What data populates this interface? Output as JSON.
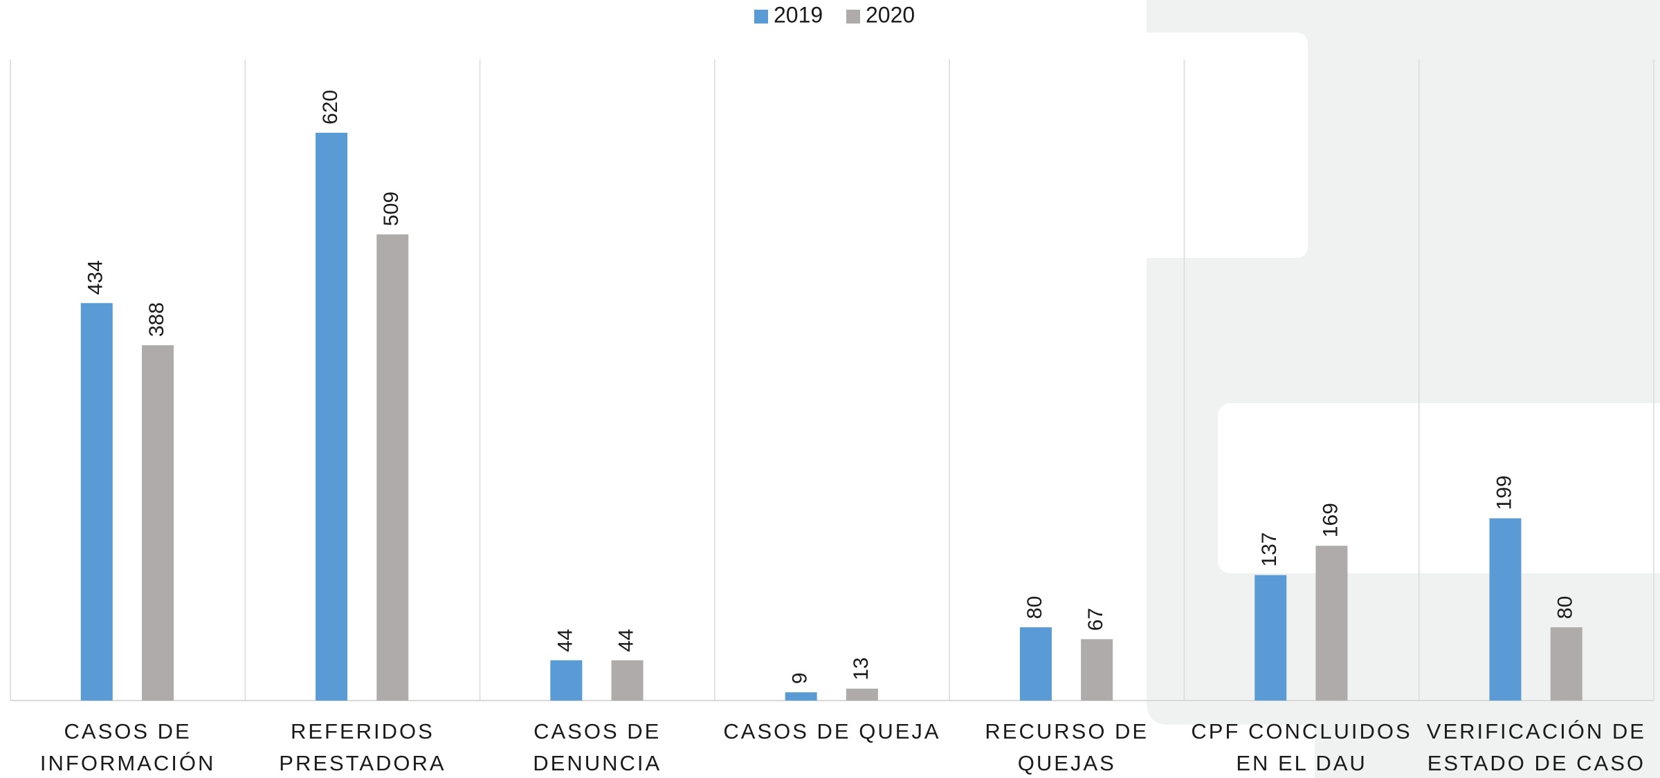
{
  "chart_data": {
    "type": "bar",
    "categories": [
      [
        "CASOS DE",
        "INFORMACIÓN"
      ],
      [
        "REFERIDOS",
        "PRESTADORA"
      ],
      [
        "CASOS DE",
        "DENUNCIA"
      ],
      [
        "CASOS DE QUEJA"
      ],
      [
        "RECURSO DE",
        "QUEJAS"
      ],
      [
        "CPF CONCLUIDOS",
        "EN EL DAU"
      ],
      [
        "VERIFICACIÓN DE",
        "ESTADO DE CASO"
      ]
    ],
    "series": [
      {
        "name": "2019",
        "color": "#5b9bd5",
        "values": [
          434,
          620,
          44,
          9,
          80,
          137,
          199
        ]
      },
      {
        "name": "2020",
        "color": "#afabab",
        "values": [
          388,
          509,
          44,
          13,
          67,
          169,
          80
        ]
      }
    ],
    "ylim": [
      0,
      700
    ],
    "legend": "top",
    "grid": false
  }
}
